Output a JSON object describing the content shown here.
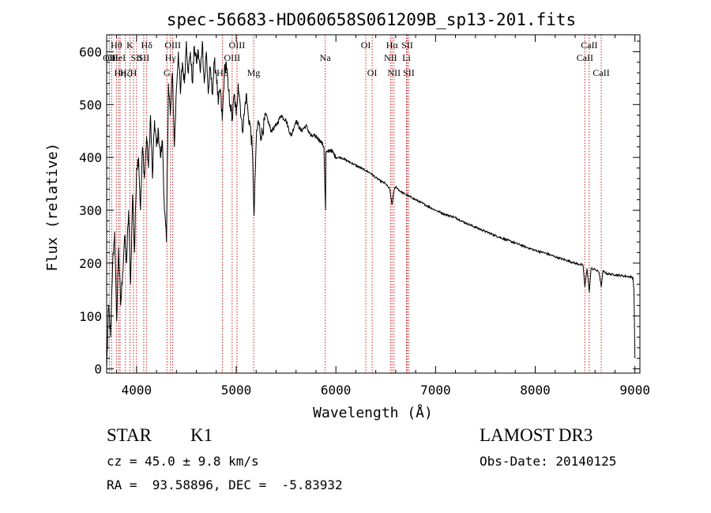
{
  "chart_data": {
    "type": "line",
    "title": "spec-56683-HD060658S061209B_sp13-201.fits",
    "xlabel": "Wavelength (Å)",
    "ylabel": "Flux (relative)",
    "xlim": [
      3700,
      9050
    ],
    "ylim": [
      -8,
      632
    ],
    "x_ticks": [
      4000,
      5000,
      6000,
      7000,
      8000,
      9000
    ],
    "y_ticks": [
      0,
      100,
      200,
      300,
      400,
      500,
      600
    ],
    "x_minor_step": 200,
    "y_minor_step": 20,
    "series": [
      {
        "name": "spectrum",
        "x": [
          3700,
          3720,
          3740,
          3760,
          3780,
          3800,
          3820,
          3840,
          3860,
          3880,
          3900,
          3920,
          3940,
          3960,
          3980,
          4000,
          4020,
          4040,
          4060,
          4080,
          4100,
          4120,
          4140,
          4160,
          4180,
          4200,
          4220,
          4240,
          4260,
          4280,
          4300,
          4320,
          4340,
          4360,
          4380,
          4400,
          4420,
          4440,
          4460,
          4480,
          4500,
          4520,
          4540,
          4560,
          4580,
          4600,
          4620,
          4640,
          4660,
          4680,
          4700,
          4720,
          4740,
          4760,
          4780,
          4800,
          4820,
          4840,
          4860,
          4880,
          4900,
          4920,
          4940,
          4960,
          4980,
          5000,
          5020,
          5040,
          5060,
          5080,
          5100,
          5120,
          5140,
          5160,
          5180,
          5200,
          5220,
          5250,
          5300,
          5350,
          5400,
          5450,
          5500,
          5550,
          5600,
          5650,
          5700,
          5750,
          5800,
          5850,
          5880,
          5890,
          5896,
          5900,
          5920,
          5950,
          6000,
          6050,
          6100,
          6150,
          6200,
          6250,
          6300,
          6350,
          6400,
          6450,
          6500,
          6540,
          6563,
          6580,
          6600,
          6650,
          6700,
          6800,
          6900,
          7000,
          7100,
          7200,
          7300,
          7400,
          7500,
          7600,
          7700,
          7800,
          7900,
          8000,
          8100,
          8200,
          8300,
          8400,
          8480,
          8498,
          8520,
          8542,
          8560,
          8600,
          8640,
          8662,
          8680,
          8720,
          8760,
          8800,
          8840,
          8880,
          8920,
          8960,
          8980,
          8990,
          9000
        ],
        "y": [
          0,
          120,
          60,
          200,
          260,
          90,
          230,
          120,
          180,
          250,
          200,
          300,
          160,
          330,
          220,
          380,
          400,
          300,
          420,
          360,
          440,
          380,
          480,
          360,
          470,
          420,
          450,
          400,
          430,
          300,
          240,
          540,
          480,
          560,
          420,
          530,
          600,
          520,
          580,
          540,
          620,
          560,
          600,
          540,
          610,
          580,
          600,
          560,
          620,
          540,
          600,
          520,
          570,
          520,
          580,
          560,
          500,
          530,
          470,
          560,
          580,
          530,
          500,
          470,
          520,
          480,
          540,
          500,
          450,
          480,
          520,
          480,
          460,
          420,
          290,
          430,
          470,
          440,
          480,
          450,
          460,
          480,
          470,
          440,
          470,
          450,
          460,
          440,
          440,
          430,
          420,
          340,
          300,
          410,
          410,
          415,
          400,
          400,
          395,
          390,
          385,
          380,
          375,
          370,
          362,
          355,
          350,
          340,
          310,
          335,
          345,
          335,
          330,
          320,
          310,
          300,
          292,
          286,
          276,
          268,
          260,
          252,
          245,
          238,
          231,
          224,
          219,
          212,
          206,
          200,
          196,
          155,
          190,
          145,
          190,
          188,
          183,
          155,
          185,
          180,
          179,
          178,
          177,
          176,
          175,
          174,
          172,
          150,
          20
        ]
      }
    ],
    "lines": [
      {
        "wl": 3727,
        "label": "OII",
        "row": 2
      },
      {
        "wl": 3750,
        "label": "OII",
        "row": 2
      },
      {
        "wl": 3798,
        "label": "Hθ",
        "row": 1
      },
      {
        "wl": 3820,
        "label": "HeI",
        "row": 2
      },
      {
        "wl": 3835,
        "label": "Hη",
        "row": 3
      },
      {
        "wl": 3889,
        "label": "Hζ",
        "row": 3
      },
      {
        "wl": 3934,
        "label": "K",
        "row": 1
      },
      {
        "wl": 3969,
        "label": "H",
        "row": 3
      },
      {
        "wl": 4000,
        "label": "SII",
        "row": 2
      },
      {
        "wl": 4102,
        "label": "Hδ",
        "row": 1
      },
      {
        "wl": 4072,
        "label": "SII",
        "row": 2
      },
      {
        "wl": 4305,
        "label": "G",
        "row": 3
      },
      {
        "wl": 4340,
        "label": "Hγ",
        "row": 2
      },
      {
        "wl": 4363,
        "label": "OIII",
        "row": 1
      },
      {
        "wl": 4861,
        "label": "Hβ",
        "row": 3
      },
      {
        "wl": 4959,
        "label": "OIII",
        "row": 2
      },
      {
        "wl": 5007,
        "label": "OIII",
        "row": 1
      },
      {
        "wl": 5175,
        "label": "Mg",
        "row": 3
      },
      {
        "wl": 5893,
        "label": "Na",
        "row": 2
      },
      {
        "wl": 6300,
        "label": "OI",
        "row": 1
      },
      {
        "wl": 6364,
        "label": "OI",
        "row": 3
      },
      {
        "wl": 6548,
        "label": "NII",
        "row": 2
      },
      {
        "wl": 6563,
        "label": "Hα",
        "row": 1
      },
      {
        "wl": 6583,
        "label": "NII",
        "row": 3
      },
      {
        "wl": 6708,
        "label": "Li",
        "row": 2
      },
      {
        "wl": 6716,
        "label": "SII",
        "row": 1
      },
      {
        "wl": 6731,
        "label": "SII",
        "row": 3
      },
      {
        "wl": 8498,
        "label": "CaII",
        "row": 2
      },
      {
        "wl": 8542,
        "label": "CaII",
        "row": 1
      },
      {
        "wl": 8662,
        "label": "CaII",
        "row": 3
      }
    ]
  },
  "info": {
    "object_class": "STAR",
    "subclass": "K1",
    "survey": "LAMOST DR3",
    "cz_line": "cz = 45.0 ± 9.8 km/s",
    "obs_date": "Obs-Date: 20140125",
    "radec": "RA =  93.58896, DEC =  -5.83932"
  }
}
